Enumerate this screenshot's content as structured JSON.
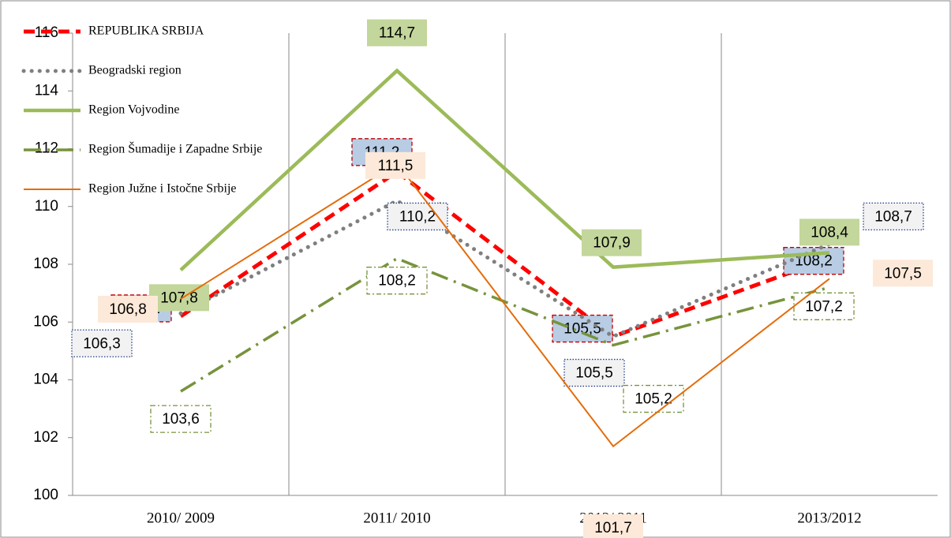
{
  "chart_data": {
    "type": "line",
    "categories": [
      "2010/ 2009",
      "2011/ 2010",
      "2012/ 2011",
      "2013/2012"
    ],
    "ylim": [
      100,
      116
    ],
    "yticks": [
      100,
      102,
      104,
      106,
      108,
      110,
      112,
      114,
      116
    ],
    "grid": true,
    "legend": "top-left",
    "series": [
      {
        "name": "REPUBLIKA SRBIJA",
        "color": "#ff0000",
        "values": [
          106.2,
          111.2,
          105.5,
          108.2
        ],
        "value_labels": [
          "106,2",
          "111,2",
          "105,5",
          "108,2"
        ]
      },
      {
        "name": "Beogradski region",
        "color": "#7f7f7f",
        "values": [
          106.3,
          110.2,
          105.5,
          108.7
        ],
        "value_labels": [
          "106,3",
          "110,2",
          "105,5",
          "108,7"
        ]
      },
      {
        "name": "Region Vojvodine",
        "color": "#9bbb59",
        "values": [
          107.8,
          114.7,
          107.9,
          108.4
        ],
        "value_labels": [
          "107,8",
          "114,7",
          "107,9",
          "108,4"
        ]
      },
      {
        "name": "Region Šumadije i Zapadne Srbije",
        "color": "#77933c",
        "values": [
          103.6,
          108.2,
          105.2,
          107.2
        ],
        "value_labels": [
          "103,6",
          "108,2",
          "105,2",
          "107,2"
        ]
      },
      {
        "name": "Region Južne i Istočne Srbije",
        "color": "#e46c0a",
        "values": [
          106.8,
          111.5,
          101.7,
          107.5
        ],
        "value_labels": [
          "106,8",
          "111,5",
          "101,7",
          "107,5"
        ]
      }
    ]
  }
}
